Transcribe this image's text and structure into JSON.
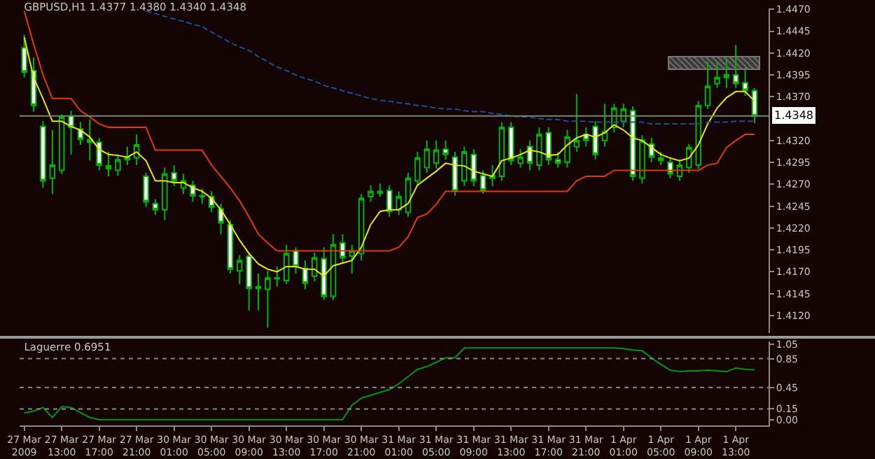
{
  "chart_data": [
    {
      "type": "candlestick",
      "title": "GBPUSD,H1 1.4377 1.4380 1.4340 1.4348",
      "categories": [
        null,
        null,
        null,
        null,
        null,
        null,
        null,
        null,
        null,
        null,
        null,
        null,
        null,
        null,
        null,
        null,
        null,
        null,
        null,
        null,
        null,
        null,
        null,
        null,
        null,
        null,
        null,
        null,
        null,
        null,
        null,
        null,
        null,
        null,
        null,
        null,
        null,
        null,
        null,
        null,
        null,
        null,
        null,
        null,
        null,
        null,
        null,
        null,
        null,
        null,
        null,
        null,
        null,
        null,
        null,
        null,
        null,
        null,
        null,
        null,
        null,
        null,
        null,
        null,
        null,
        null,
        null,
        null,
        null,
        null,
        null,
        null,
        null,
        null,
        null,
        null,
        null,
        null,
        null
      ],
      "ohlc": [
        [
          1.4426,
          1.4441,
          1.4392,
          1.4398
        ],
        [
          1.44,
          1.4415,
          1.4353,
          1.436
        ],
        [
          1.4336,
          1.4342,
          1.4266,
          1.4274
        ],
        [
          1.4277,
          1.4332,
          1.4259,
          1.4292
        ],
        [
          1.4286,
          1.435,
          1.4282,
          1.4347
        ],
        [
          1.4348,
          1.4354,
          1.4304,
          1.4335
        ],
        [
          1.4333,
          1.4341,
          1.4315,
          1.4321
        ],
        [
          1.4321,
          1.4344,
          1.4297,
          1.4318
        ],
        [
          1.4318,
          1.4323,
          1.4286,
          1.4292
        ],
        [
          1.4291,
          1.4307,
          1.4279,
          1.4288
        ],
        [
          1.4286,
          1.4304,
          1.428,
          1.4298
        ],
        [
          1.4301,
          1.4313,
          1.4292,
          1.4298
        ],
        [
          1.43,
          1.4327,
          1.4292,
          1.4315
        ],
        [
          1.4279,
          1.4283,
          1.4244,
          1.425
        ],
        [
          1.4248,
          1.4253,
          1.4235,
          1.4241
        ],
        [
          1.4241,
          1.4289,
          1.4229,
          1.4282
        ],
        [
          1.4283,
          1.4292,
          1.4268,
          1.4274
        ],
        [
          1.4266,
          1.4282,
          1.4259,
          1.4274
        ],
        [
          1.4269,
          1.4274,
          1.425,
          1.4257
        ],
        [
          1.4257,
          1.4265,
          1.4248,
          1.4256
        ],
        [
          1.4256,
          1.4262,
          1.4238,
          1.4244
        ],
        [
          1.4242,
          1.4248,
          1.4213,
          1.4226
        ],
        [
          1.4224,
          1.4229,
          1.4168,
          1.4173
        ],
        [
          1.4171,
          1.4189,
          1.4156,
          1.4183
        ],
        [
          1.4188,
          1.4192,
          1.4126,
          1.4151
        ],
        [
          1.4151,
          1.4168,
          1.4126,
          1.4153
        ],
        [
          1.415,
          1.4171,
          1.4106,
          1.4163
        ],
        [
          1.4163,
          1.4176,
          1.4153,
          1.4162
        ],
        [
          1.416,
          1.4201,
          1.4156,
          1.4191
        ],
        [
          1.4194,
          1.4198,
          1.4168,
          1.4176
        ],
        [
          1.4174,
          1.4183,
          1.415,
          1.4157
        ],
        [
          1.4165,
          1.4192,
          1.4159,
          1.4186
        ],
        [
          1.4185,
          1.4198,
          1.4138,
          1.4142
        ],
        [
          1.4142,
          1.4213,
          1.4138,
          1.4201
        ],
        [
          1.4203,
          1.4213,
          1.418,
          1.4186
        ],
        [
          1.4188,
          1.4201,
          1.4168,
          1.4194
        ],
        [
          1.4191,
          1.4259,
          1.4183,
          1.4254
        ],
        [
          1.4256,
          1.4269,
          1.425,
          1.4262
        ],
        [
          1.4262,
          1.4271,
          1.4256,
          1.426
        ],
        [
          1.4263,
          1.4269,
          1.4233,
          1.4239
        ],
        [
          1.4241,
          1.4262,
          1.4235,
          1.4256
        ],
        [
          1.4238,
          1.4283,
          1.4233,
          1.4277
        ],
        [
          1.4274,
          1.4307,
          1.4268,
          1.43
        ],
        [
          1.4289,
          1.432,
          1.4283,
          1.431
        ],
        [
          1.4294,
          1.432,
          1.4288,
          1.4309
        ],
        [
          1.431,
          1.432,
          1.4298,
          1.4304
        ],
        [
          1.4301,
          1.4307,
          1.4257,
          1.4262
        ],
        [
          1.4274,
          1.4313,
          1.4268,
          1.4307
        ],
        [
          1.4304,
          1.431,
          1.4268,
          1.4274
        ],
        [
          1.428,
          1.4286,
          1.4259,
          1.4263
        ],
        [
          1.4277,
          1.4292,
          1.4268,
          1.428
        ],
        [
          1.4279,
          1.4341,
          1.4274,
          1.4335
        ],
        [
          1.4335,
          1.4341,
          1.4292,
          1.4297
        ],
        [
          1.4294,
          1.431,
          1.4289,
          1.4301
        ],
        [
          1.4313,
          1.432,
          1.4286,
          1.4294
        ],
        [
          1.4292,
          1.4335,
          1.4286,
          1.4327
        ],
        [
          1.4329,
          1.4335,
          1.4292,
          1.4298
        ],
        [
          1.4298,
          1.4307,
          1.4289,
          1.4294
        ],
        [
          1.4295,
          1.4332,
          1.4289,
          1.4324
        ],
        [
          1.4313,
          1.4373,
          1.4307,
          1.432
        ],
        [
          1.4327,
          1.4335,
          1.4313,
          1.432
        ],
        [
          1.4336,
          1.4342,
          1.4298,
          1.4304
        ],
        [
          1.432,
          1.4362,
          1.4313,
          1.433
        ],
        [
          1.4335,
          1.4362,
          1.4329,
          1.4357
        ],
        [
          1.4342,
          1.4362,
          1.4335,
          1.4356
        ],
        [
          1.4354,
          1.4359,
          1.4274,
          1.4279
        ],
        [
          1.4277,
          1.4326,
          1.4271,
          1.432
        ],
        [
          1.4316,
          1.4323,
          1.4295,
          1.4301
        ],
        [
          1.43,
          1.4307,
          1.4292,
          1.4297
        ],
        [
          1.4295,
          1.4301,
          1.4277,
          1.4282
        ],
        [
          1.4279,
          1.4298,
          1.4274,
          1.4292
        ],
        [
          1.4289,
          1.4316,
          1.4283,
          1.4312
        ],
        [
          1.4292,
          1.4365,
          1.4288,
          1.436
        ],
        [
          1.436,
          1.441,
          1.4356,
          1.4382
        ],
        [
          1.4385,
          1.441,
          1.438,
          1.4392
        ],
        [
          1.4395,
          1.4413,
          1.438,
          1.4392
        ],
        [
          1.4395,
          1.4429,
          1.438,
          1.4385
        ],
        [
          1.4386,
          1.4403,
          1.4371,
          1.4377
        ],
        [
          1.4377,
          1.438,
          1.434,
          1.4348
        ]
      ],
      "series": [
        {
          "type": "line",
          "color": "#e8e800",
          "values": [
            1.4438,
            1.4392,
            1.4368,
            1.4342,
            1.4342,
            1.4336,
            1.4332,
            1.4324,
            1.431,
            1.4304,
            1.4303,
            1.4301,
            1.4307,
            1.4297,
            1.4274,
            1.4274,
            1.4272,
            1.4272,
            1.4266,
            1.4262,
            1.4254,
            1.4241,
            1.4224,
            1.4206,
            1.4191,
            1.4179,
            1.4173,
            1.417,
            1.4176,
            1.4176,
            1.4173,
            1.4173,
            1.4165,
            1.4177,
            1.418,
            1.4183,
            1.4198,
            1.4224,
            1.4239,
            1.4241,
            1.4241,
            1.4248,
            1.4269,
            1.4277,
            1.4285,
            1.4294,
            1.4292,
            1.4291,
            1.4285,
            1.4282,
            1.4279,
            1.4297,
            1.43,
            1.4304,
            1.4309,
            1.4307,
            1.4303,
            1.4304,
            1.4315,
            1.4323,
            1.4327,
            1.4324,
            1.4329,
            1.4338,
            1.4332,
            1.4323,
            1.432,
            1.4312,
            1.4304,
            1.43,
            1.4297,
            1.43,
            1.4315,
            1.4339,
            1.4357,
            1.4369,
            1.4376,
            1.4376,
            1.4365
          ]
        },
        {
          "type": "line",
          "color": "#e03c00",
          "values": [
            1.4468,
            1.443,
            1.4395,
            1.4368,
            1.4368,
            1.4368,
            1.4354,
            1.4347,
            1.4339,
            1.4335,
            1.4335,
            1.4335,
            1.4335,
            1.4335,
            1.4309,
            1.4309,
            1.4309,
            1.4309,
            1.4309,
            1.4309,
            1.4292,
            1.4279,
            1.4266,
            1.4251,
            1.4233,
            1.4213,
            1.4203,
            1.4194,
            1.4194,
            1.4194,
            1.4194,
            1.4194,
            1.4194,
            1.4194,
            1.4194,
            1.4194,
            1.4194,
            1.4194,
            1.4194,
            1.4194,
            1.4198,
            1.421,
            1.4232,
            1.4236,
            1.4247,
            1.4262,
            1.4262,
            1.4262,
            1.4262,
            1.4262,
            1.4262,
            1.4262,
            1.4262,
            1.4262,
            1.4262,
            1.4262,
            1.4262,
            1.4262,
            1.4262,
            1.4274,
            1.4279,
            1.4279,
            1.4279,
            1.4286,
            1.4286,
            1.4286,
            1.4286,
            1.4286,
            1.4286,
            1.4286,
            1.4286,
            1.4286,
            1.4286,
            1.4292,
            1.4294,
            1.4312,
            1.432,
            1.4327,
            1.4327
          ]
        },
        {
          "type": "line",
          "color": "#1c4c9c",
          "line_style": "dashed",
          "values": [
            null,
            null,
            null,
            null,
            null,
            null,
            null,
            null,
            null,
            null,
            null,
            null,
            null,
            1.4468,
            1.4465,
            1.4462,
            1.4459,
            1.4456,
            1.4453,
            1.445,
            1.4444,
            1.4438,
            1.4432,
            1.4427,
            1.4423,
            1.4416,
            1.441,
            1.4404,
            1.44,
            1.4395,
            1.4391,
            1.4388,
            1.4383,
            1.438,
            1.4377,
            1.4374,
            1.4371,
            1.4368,
            1.4366,
            1.4365,
            1.4363,
            1.4362,
            1.436,
            1.4359,
            1.4357,
            1.4356,
            1.4356,
            1.4354,
            1.4353,
            1.4353,
            1.4351,
            1.435,
            1.4348,
            1.4347,
            1.4347,
            1.4345,
            1.4344,
            1.4344,
            1.4342,
            1.4342,
            1.4342,
            1.4341,
            1.4341,
            1.4341,
            1.4341,
            1.4341,
            1.4341,
            1.4339,
            1.4339,
            1.4339,
            1.4339,
            1.4339,
            1.4339,
            1.4341,
            1.4341,
            1.4341,
            1.4342,
            1.4342,
            1.4342
          ]
        }
      ],
      "ylim": [
        1.41,
        1.4471
      ],
      "yticks": [
        {
          "value": 1.412,
          "label": "1.4120"
        },
        {
          "value": 1.4145,
          "label": "1.4145"
        },
        {
          "value": 1.417,
          "label": "1.4170"
        },
        {
          "value": 1.4195,
          "label": "1.4195"
        },
        {
          "value": 1.422,
          "label": "1.4220"
        },
        {
          "value": 1.4245,
          "label": "1.4245"
        },
        {
          "value": 1.427,
          "label": "1.4270"
        },
        {
          "value": 1.4295,
          "label": "1.4295"
        },
        {
          "value": 1.432,
          "label": "1.4320"
        },
        {
          "value": 1.437,
          "label": "1.4370"
        },
        {
          "value": 1.4395,
          "label": "1.4395"
        },
        {
          "value": 1.442,
          "label": "1.4420"
        },
        {
          "value": 1.4445,
          "label": "1.4445"
        },
        {
          "value": 1.447,
          "label": "1.4470"
        }
      ],
      "ref_lines": [
        {
          "axis": "y",
          "value": 1.4348,
          "label": "1.4348",
          "color": "#6e8a6e"
        }
      ],
      "tick_labels": "y"
    },
    {
      "type": "line",
      "title": "Laguerre 0.6951",
      "categories": [
        "27 Mar 2009",
        null,
        null,
        null,
        "27 Mar 13:00",
        null,
        null,
        null,
        "27 Mar 17:00",
        null,
        null,
        null,
        "27 Mar 21:00",
        null,
        null,
        null,
        "30 Mar 01:00",
        null,
        null,
        null,
        "30 Mar 05:00",
        null,
        null,
        null,
        "30 Mar 09:00",
        null,
        null,
        null,
        "30 Mar 13:00",
        null,
        null,
        null,
        "30 Mar 17:00",
        null,
        null,
        null,
        "30 Mar 21:00",
        null,
        null,
        null,
        "31 Mar 01:00",
        null,
        null,
        null,
        "31 Mar 05:00",
        null,
        null,
        null,
        "31 Mar 09:00",
        null,
        null,
        null,
        "31 Mar 13:00",
        null,
        null,
        null,
        "31 Mar 17:00",
        null,
        null,
        null,
        "31 Mar 21:00",
        null,
        null,
        null,
        "1 Apr 01:00",
        null,
        null,
        null,
        "1 Apr 05:00",
        null,
        null,
        null,
        "1 Apr 09:00",
        null,
        null,
        null,
        "1 Apr 13:00",
        null,
        null
      ],
      "series": [
        {
          "color": "#009a00",
          "values": [
            0.09,
            0.12,
            0.17,
            0.03,
            0.18,
            0.17,
            0.1,
            0.03,
            0,
            0,
            0,
            0,
            0,
            0,
            0,
            0,
            0,
            0,
            0,
            0,
            0,
            0,
            0,
            0,
            0,
            0,
            0,
            0,
            0,
            0,
            0,
            0,
            0,
            0,
            0,
            0.2,
            0.3,
            0.34,
            0.38,
            0.42,
            0.5,
            0.6,
            0.7,
            0.74,
            0.8,
            0.86,
            0.86,
            1,
            1,
            1,
            1,
            1,
            1,
            1,
            1,
            1,
            1,
            1,
            1,
            1,
            1,
            1,
            1,
            1,
            0.99,
            0.97,
            0.96,
            0.86,
            0.77,
            0.69,
            0.67,
            0.68,
            0.68,
            0.69,
            0.68,
            0.67,
            0.72,
            0.7,
            0.6951
          ]
        }
      ],
      "ylim": [
        -0.08,
        1.09
      ],
      "yticks": [
        {
          "value": 0,
          "label": "0.00"
        },
        0.15,
        0.45,
        0.85,
        1.05
      ],
      "ref_lines": [
        {
          "axis": "y",
          "value": 0.15,
          "color": "#8a8a8a",
          "line_style": "dotted"
        },
        {
          "axis": "y",
          "value": 0.45,
          "color": "#8a8a8a",
          "line_style": "dotted"
        },
        {
          "axis": "y",
          "value": 0.85,
          "color": "#8a8a8a",
          "line_style": "dotted"
        }
      ]
    }
  ]
}
